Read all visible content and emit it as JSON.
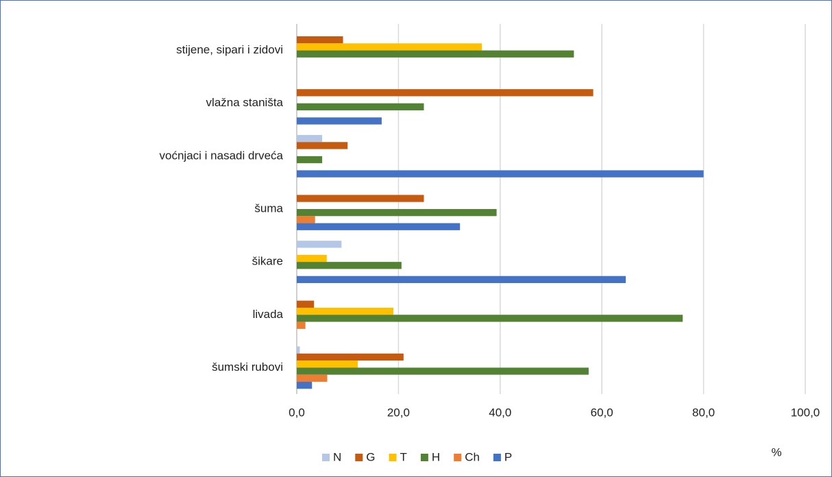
{
  "chart_data": {
    "type": "bar",
    "orientation": "horizontal",
    "categories": [
      "šumski rubovi",
      "livada",
      "šikare",
      "šuma",
      "voćnjaci i nasadi drveća",
      "vlažna staništa",
      "stijene, sipari i zidovi"
    ],
    "series": [
      {
        "name": "N",
        "color": "#b4c7e7",
        "values": [
          0.6,
          0,
          8.8,
          0,
          5,
          0,
          0
        ]
      },
      {
        "name": "G",
        "color": "#c55a11",
        "values": [
          21,
          3.4,
          0,
          25,
          10,
          58.3,
          9.1
        ]
      },
      {
        "name": "T",
        "color": "#ffc000",
        "values": [
          12,
          19,
          5.9,
          0,
          0,
          0,
          36.4
        ]
      },
      {
        "name": "H",
        "color": "#548235",
        "values": [
          57.4,
          75.9,
          20.6,
          39.3,
          5,
          25,
          54.5
        ]
      },
      {
        "name": "Ch",
        "color": "#ed7d31",
        "values": [
          6,
          1.7,
          0,
          3.6,
          0,
          0,
          0
        ]
      },
      {
        "name": "P",
        "color": "#4472c4",
        "values": [
          3,
          0,
          64.7,
          32.1,
          80,
          16.7,
          0
        ]
      }
    ],
    "xlim": [
      0,
      100
    ],
    "xticks": [
      {
        "value": 0,
        "label": "0,0"
      },
      {
        "value": 20,
        "label": "20,0"
      },
      {
        "value": 40,
        "label": "40,0"
      },
      {
        "value": 60,
        "label": "60,0"
      },
      {
        "value": 80,
        "label": "80,0"
      },
      {
        "value": 100,
        "label": "100,0"
      }
    ],
    "xlabel": "%",
    "grid": true,
    "legend": "bottom"
  }
}
